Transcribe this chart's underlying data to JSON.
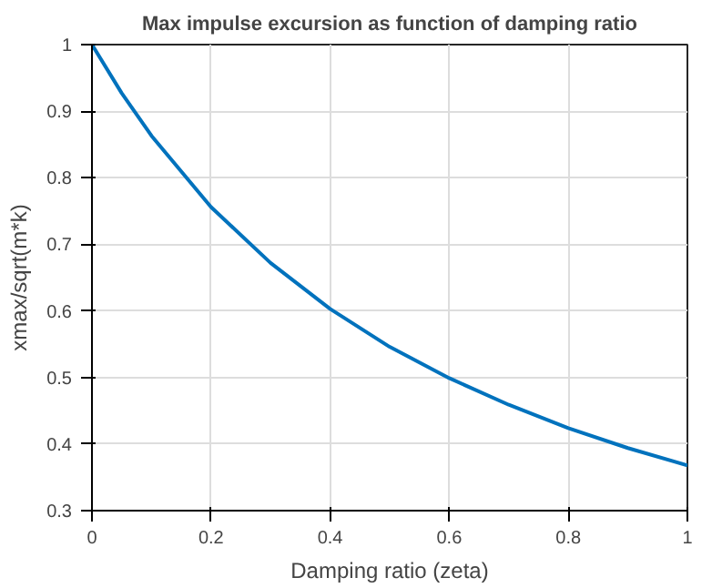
{
  "chart_data": {
    "type": "line",
    "title": "Max impulse excursion as function of damping ratio",
    "xlabel": "Damping ratio (zeta)",
    "ylabel": "xmax/sqrt(m*k)",
    "x": [
      0,
      0.05,
      0.1,
      0.2,
      0.3,
      0.4,
      0.5,
      0.6,
      0.7,
      0.8,
      0.9,
      1
    ],
    "series": [
      {
        "color": "#0072bd",
        "values": [
          1,
          0.927,
          0.863,
          0.756,
          0.672,
          0.603,
          0.546,
          0.499,
          0.459,
          0.424,
          0.394,
          0.368
        ]
      }
    ],
    "xlim": [
      0,
      1
    ],
    "ylim": [
      0.3,
      1
    ],
    "xticks": [
      0,
      0.2,
      0.4,
      0.6,
      0.8,
      1
    ],
    "yticks": [
      0.3,
      0.4,
      0.5,
      0.6,
      0.7,
      0.8,
      0.9,
      1
    ],
    "grid": true,
    "marker": "none",
    "line_style": "solid"
  }
}
